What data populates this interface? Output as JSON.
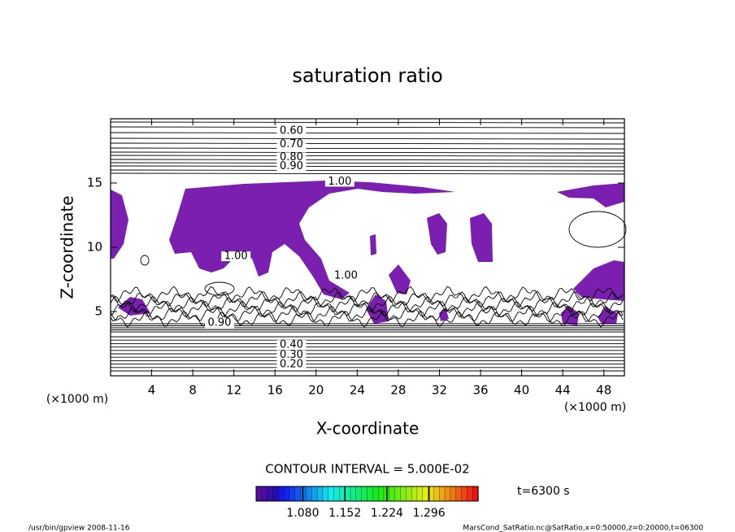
{
  "chart_data": {
    "type": "contour",
    "title": "saturation ratio",
    "xlabel": "X-coordinate",
    "ylabel": "Z-coordinate",
    "x_unit": "(×1000 m)",
    "y_unit": "(×1000 m)",
    "xlim": [
      0,
      50
    ],
    "ylim": [
      0,
      20
    ],
    "xticks": [
      4,
      8,
      12,
      16,
      20,
      24,
      28,
      32,
      36,
      40,
      44,
      48
    ],
    "yticks": [
      5,
      10,
      15
    ],
    "fill_color": "#7a1fb0",
    "contour_labels": [
      {
        "x": 17.6,
        "y": 19.05,
        "label": "0.60"
      },
      {
        "x": 17.6,
        "y": 18.0,
        "label": "0.70"
      },
      {
        "x": 17.6,
        "y": 17.0,
        "label": "0.80"
      },
      {
        "x": 17.6,
        "y": 16.3,
        "label": "0.90"
      },
      {
        "x": 22.3,
        "y": 15.1,
        "label": "1.00"
      },
      {
        "x": 12.2,
        "y": 9.3,
        "label": "1.00"
      },
      {
        "x": 22.9,
        "y": 7.8,
        "label": "1.00"
      },
      {
        "x": 10.6,
        "y": 4.1,
        "label": "0.90"
      },
      {
        "x": 17.6,
        "y": 2.4,
        "label": "0.40"
      },
      {
        "x": 17.6,
        "y": 1.6,
        "label": "0.30"
      },
      {
        "x": 17.6,
        "y": 0.9,
        "label": "0.20"
      }
    ],
    "contour_interval": "CONTOUR INTERVAL = 5.000E-02",
    "colorbar": {
      "clim": [
        1.0,
        1.38
      ],
      "ticks": [
        {
          "value": 1.08,
          "label": "1.080"
        },
        {
          "value": 1.152,
          "label": "1.152"
        },
        {
          "value": 1.224,
          "label": "1.224"
        },
        {
          "value": 1.296,
          "label": "1.296"
        }
      ]
    },
    "time_label": "t=6300 s",
    "footer_left": "/usr/bin/gpview  2008-11-16",
    "footer_right": "MarsCond_SatRatio.nc@SatRatio,x=0:50000,z=0:20000,t=06300"
  }
}
